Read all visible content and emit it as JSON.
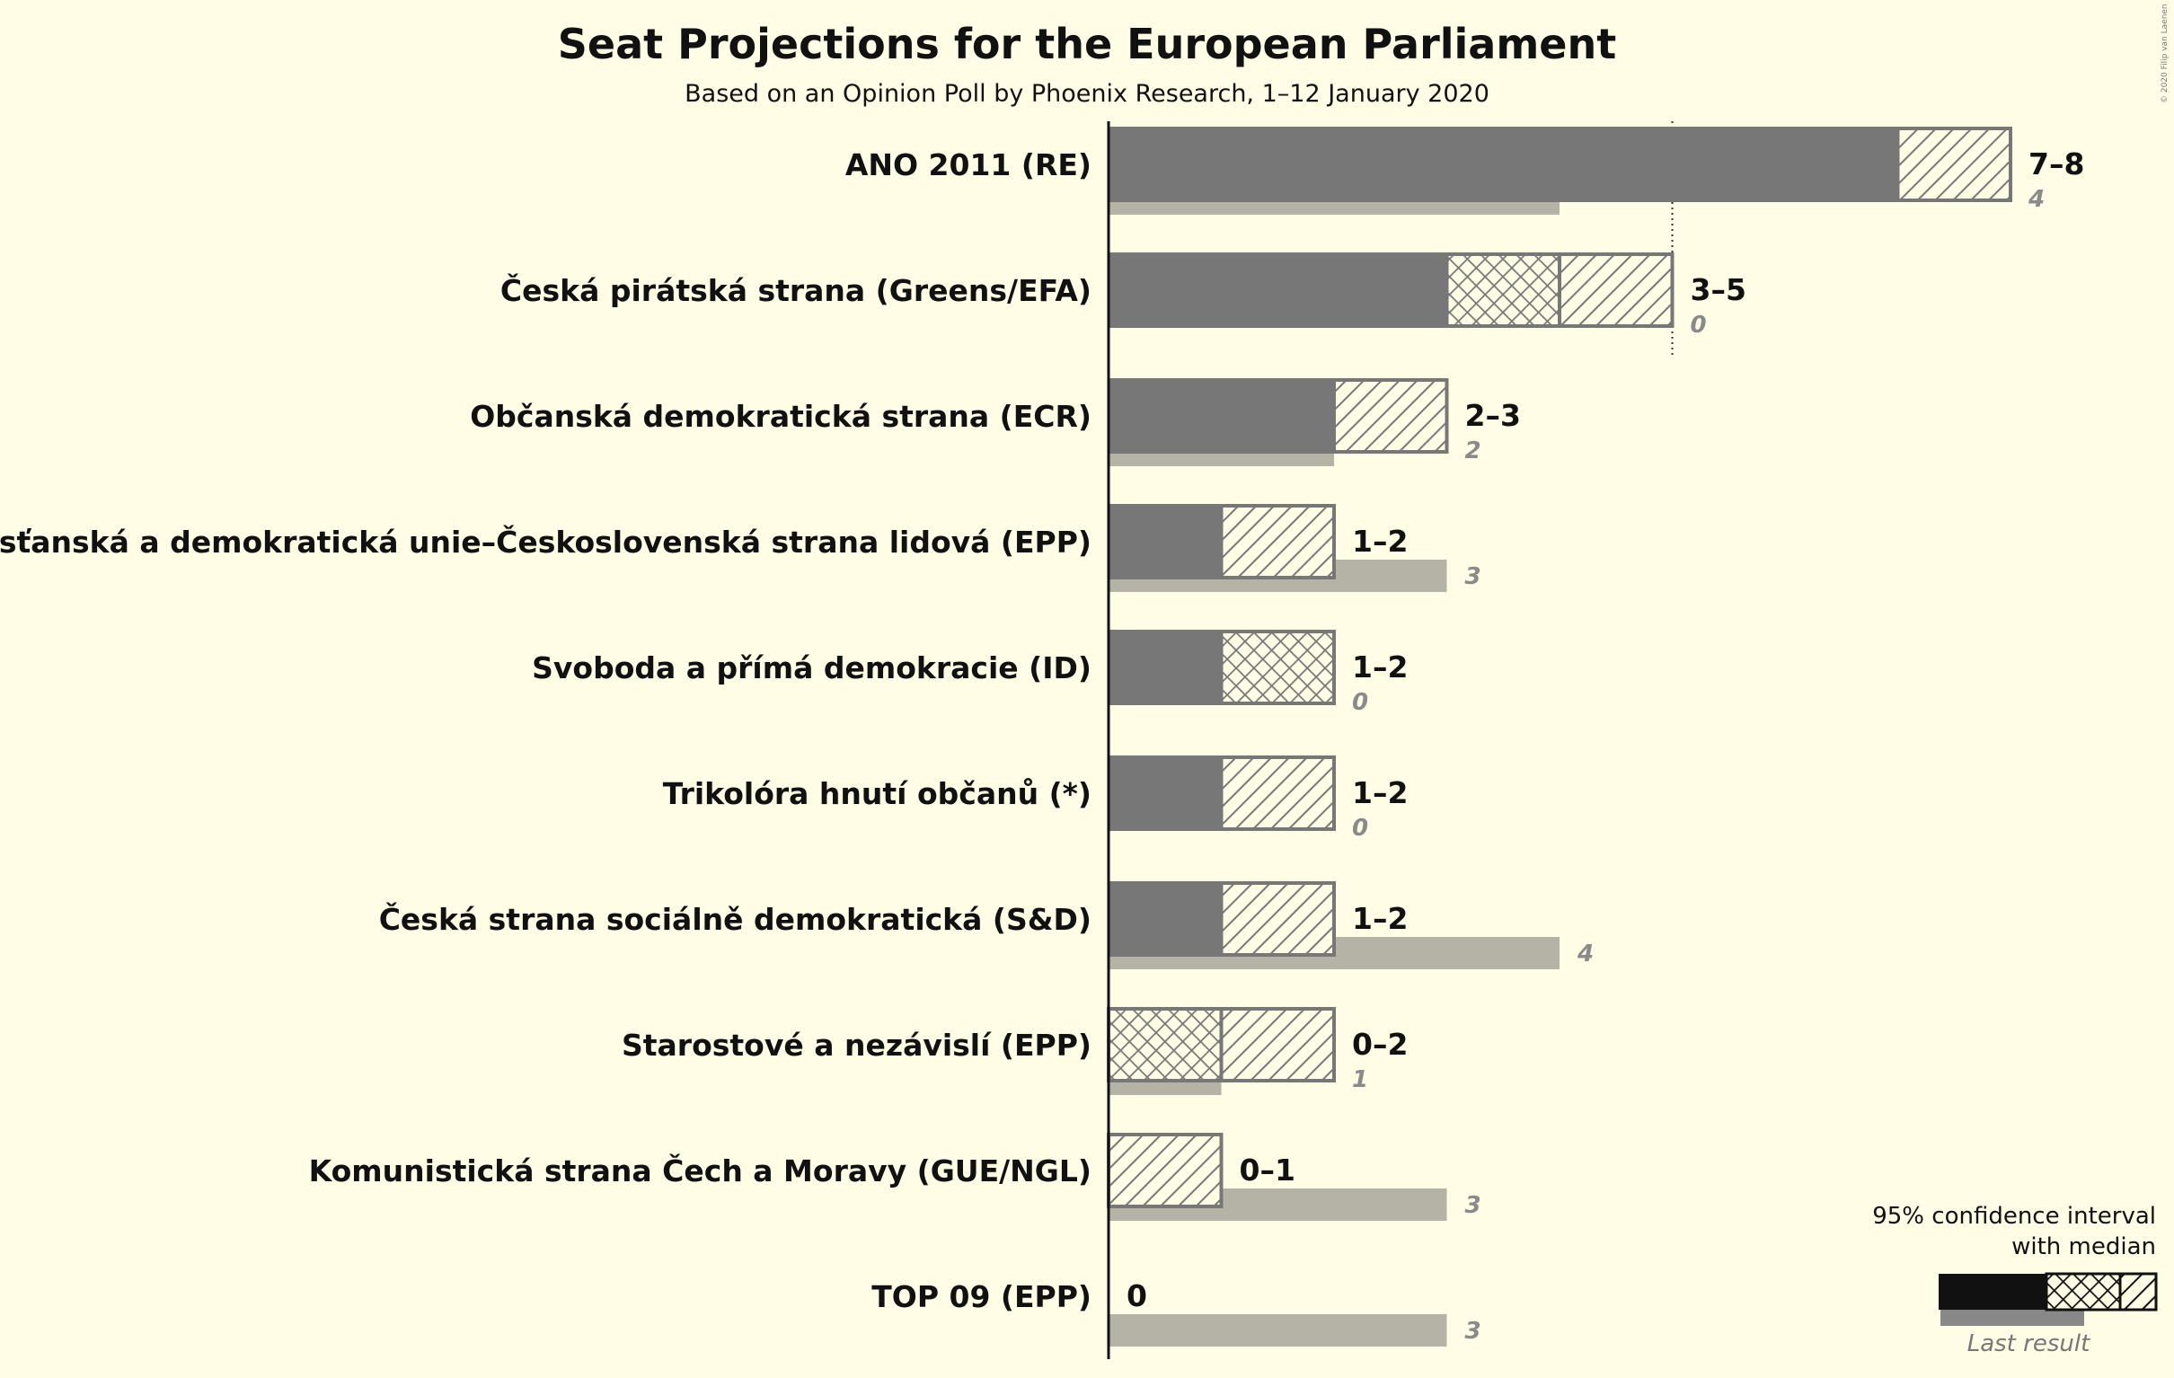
{
  "chart_data": {
    "type": "bar",
    "title": "Seat Projections for the European Parliament",
    "subtitle": "Based on an Opinion Poll by Phoenix Research, 1–12 January 2020",
    "copyright": "© 2020 Filip van Laenen",
    "xlim": [
      0,
      8
    ],
    "majority_line": 5,
    "parties": [
      {
        "name": "ANO 2011 (RE)",
        "ci_low": 7,
        "ci_high": 8,
        "median": 7,
        "last_result": 4,
        "range_label": "7–8",
        "last_label": "4"
      },
      {
        "name": "Česká pirátská strana (Greens/EFA)",
        "ci_low": 3,
        "ci_high": 5,
        "median": 4,
        "last_result": 0,
        "range_label": "3–5",
        "last_label": "0"
      },
      {
        "name": "Občanská demokratická strana (ECR)",
        "ci_low": 2,
        "ci_high": 3,
        "median": 2,
        "last_result": 2,
        "range_label": "2–3",
        "last_label": "2"
      },
      {
        "name": "Křesťanská a demokratická unie–Československá strana lidová (EPP)",
        "ci_low": 1,
        "ci_high": 2,
        "median": 1,
        "last_result": 3,
        "range_label": "1–2",
        "last_label": "3"
      },
      {
        "name": "Svoboda a přímá demokracie (ID)",
        "ci_low": 1,
        "ci_high": 2,
        "median": 2,
        "last_result": 0,
        "range_label": "1–2",
        "last_label": "0"
      },
      {
        "name": "Trikolóra hnutí občanů (*)",
        "ci_low": 1,
        "ci_high": 2,
        "median": 1,
        "last_result": 0,
        "range_label": "1–2",
        "last_label": "0"
      },
      {
        "name": "Česká strana sociálně demokratická (S&D)",
        "ci_low": 1,
        "ci_high": 2,
        "median": 1,
        "last_result": 4,
        "range_label": "1–2",
        "last_label": "4"
      },
      {
        "name": "Starostové a nezávislí (EPP)",
        "ci_low": 0,
        "ci_high": 2,
        "median": 1,
        "last_result": 1,
        "range_label": "0–2",
        "last_label": "1"
      },
      {
        "name": "Komunistická strana Čech a Moravy (GUE/NGL)",
        "ci_low": 0,
        "ci_high": 1,
        "median": 0,
        "last_result": 3,
        "range_label": "0–1",
        "last_label": "3"
      },
      {
        "name": "TOP 09 (EPP)",
        "ci_low": 0,
        "ci_high": 0,
        "median": 0,
        "last_result": 3,
        "range_label": "0",
        "last_label": "3"
      }
    ],
    "legend": {
      "line1": "95% confidence interval",
      "line2": "with median",
      "last_result": "Last result"
    }
  }
}
